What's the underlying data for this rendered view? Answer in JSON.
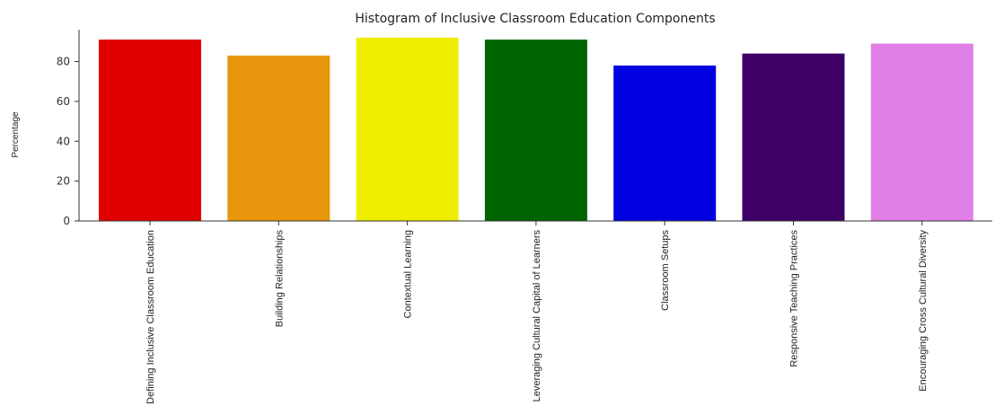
{
  "chart_data": {
    "type": "bar",
    "title": "Histogram of Inclusive Classroom Education Components",
    "xlabel": "",
    "ylabel": "Percentage",
    "ylim": [
      0,
      96
    ],
    "yticks": [
      0,
      20,
      40,
      60,
      80
    ],
    "grid": false,
    "categories": [
      "Defining Inclusive Classroom Education",
      "Building Relationships",
      "Contextual Learning",
      "Leveraging Cultural Capital of Learners",
      "Classroom Setups",
      "Responsive Teaching Practices",
      "Encouraging Cross Cultural Diversity"
    ],
    "values": [
      91,
      83,
      92,
      91,
      78,
      84,
      89
    ],
    "colors": [
      "#e00000",
      "#e8960c",
      "#f0ee00",
      "#006400",
      "#0000e0",
      "#3e0066",
      "#e07fe6"
    ]
  }
}
